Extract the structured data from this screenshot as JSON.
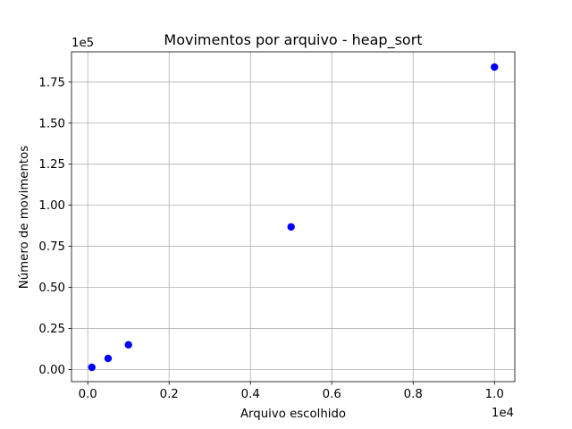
{
  "chart_data": {
    "type": "scatter",
    "title": "Movimentos por arquivo - heap_sort",
    "xlabel": "Arquivo escolhido",
    "ylabel": "Número de movimentos",
    "x_offset_label": "1e4",
    "y_offset_label": "1e5",
    "x": [
      100,
      500,
      1000,
      5000,
      10000
    ],
    "y": [
      1300,
      6700,
      15000,
      86800,
      184100
    ],
    "xlim": [
      -400,
      10500
    ],
    "ylim": [
      -7400,
      193400
    ],
    "x_ticks": [
      {
        "value": 0,
        "label": "0.0"
      },
      {
        "value": 2000,
        "label": "0.2"
      },
      {
        "value": 4000,
        "label": "0.4"
      },
      {
        "value": 6000,
        "label": "0.6"
      },
      {
        "value": 8000,
        "label": "0.8"
      },
      {
        "value": 10000,
        "label": "1.0"
      }
    ],
    "y_ticks": [
      {
        "value": 0,
        "label": "0.00"
      },
      {
        "value": 25000,
        "label": "0.25"
      },
      {
        "value": 50000,
        "label": "0.50"
      },
      {
        "value": 75000,
        "label": "0.75"
      },
      {
        "value": 100000,
        "label": "1.00"
      },
      {
        "value": 125000,
        "label": "1.25"
      },
      {
        "value": 150000,
        "label": "1.50"
      },
      {
        "value": 175000,
        "label": "1.75"
      }
    ],
    "grid": true,
    "colors": {
      "marker": "#0000ff",
      "grid": "#b0b0b0",
      "axes": "#000000"
    }
  }
}
